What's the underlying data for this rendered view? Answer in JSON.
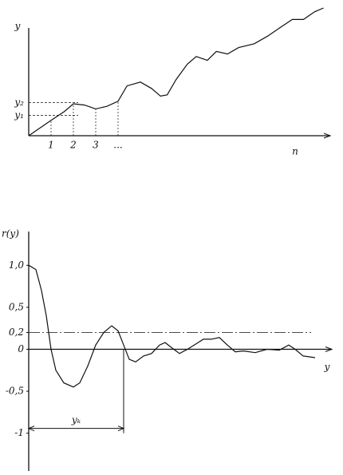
{
  "chart_data": [
    {
      "type": "line",
      "ylabel": "y",
      "xlabel": "n",
      "x": [
        0,
        0.5,
        1,
        1.6,
        2,
        2.5,
        3,
        3.5,
        4,
        4.4,
        5,
        5.5,
        5.9,
        6.2,
        6.6,
        7.1,
        7.5,
        8,
        8.4,
        8.9,
        9.4,
        10.1,
        10.7,
        11.2,
        11.8,
        12.3,
        12.8,
        13.2
      ],
      "values": [
        0,
        6,
        12,
        19,
        25,
        24,
        21,
        23,
        27,
        39,
        42,
        37,
        31,
        32,
        44,
        56,
        62,
        59,
        66,
        64,
        69,
        72,
        78,
        84,
        91,
        91,
        97,
        100
      ],
      "xlim": [
        0,
        13.5
      ],
      "ylim": [
        0,
        100
      ],
      "xticks": [
        1,
        2,
        3,
        {
          "value": 4,
          "label": "..."
        }
      ],
      "yticks": [
        {
          "value": 16,
          "label": "y₁"
        },
        {
          "value": 26,
          "label": "y₂"
        }
      ]
    },
    {
      "type": "line",
      "ylabel": "r(y)",
      "xlabel": "y",
      "x": [
        0,
        0.9,
        1.6,
        2.2,
        2.8,
        3.4,
        4.4,
        5.6,
        6.4,
        7.4,
        8.4,
        9.4,
        10.4,
        11.2,
        11.9,
        12.6,
        13.4,
        14.4,
        15.4,
        16.4,
        17.1,
        17.9,
        18.9,
        19.9,
        20.9,
        21.9,
        22.9,
        23.9,
        24.9,
        25.9,
        26.9,
        28.4,
        29.9,
        31.4,
        32.6,
        33.4,
        34.4,
        35.9
      ],
      "values": [
        1.0,
        0.95,
        0.7,
        0.4,
        0.0,
        -0.25,
        -0.4,
        -0.45,
        -0.4,
        -0.2,
        0.05,
        0.2,
        0.28,
        0.22,
        0.05,
        -0.12,
        -0.15,
        -0.08,
        -0.05,
        0.05,
        0.08,
        0.02,
        -0.05,
        0.0,
        0.06,
        0.12,
        0.12,
        0.14,
        0.05,
        -0.03,
        -0.02,
        -0.04,
        0.0,
        -0.01,
        0.05,
        0.0,
        -0.08,
        -0.1
      ],
      "xlim": [
        0,
        38
      ],
      "ylim": [
        -1.45,
        1.45
      ],
      "yticks": [
        {
          "value": 1.0,
          "label": "1,0"
        },
        {
          "value": 0.5,
          "label": "0,5"
        },
        {
          "value": 0.2,
          "label": "0,2"
        },
        0,
        {
          "value": -0.5,
          "label": "-0,5"
        },
        -1
      ],
      "hline": 0.2,
      "marker": {
        "label": "yₖ",
        "x": 11.9,
        "y": -1
      }
    }
  ]
}
